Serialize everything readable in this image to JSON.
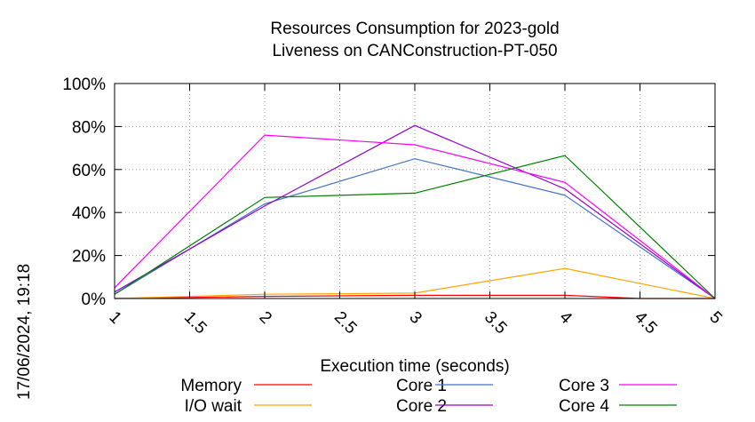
{
  "chart_data": {
    "type": "line",
    "title": [
      "Resources Consumption for 2023-gold",
      "Liveness on CANConstruction-PT-050"
    ],
    "xlabel": "Execution time (seconds)",
    "ylabel": "",
    "xlim": [
      1,
      5
    ],
    "ylim": [
      0,
      100
    ],
    "x_ticks": [
      "1",
      "1.5",
      "2",
      "2.5",
      "3",
      "3.5",
      "4",
      "4.5",
      "5"
    ],
    "y_ticks": [
      "0%",
      "20%",
      "40%",
      "60%",
      "80%",
      "100%"
    ],
    "grid": true,
    "legend_position": "bottom",
    "series": [
      {
        "name": "Memory",
        "color": "#ff0000",
        "x": [
          1,
          2,
          3,
          4,
          4.5,
          5
        ],
        "y": [
          0,
          1,
          1.5,
          1.5,
          0,
          0
        ]
      },
      {
        "name": "I/O wait",
        "color": "#ffa500",
        "x": [
          1,
          2,
          3,
          4,
          5
        ],
        "y": [
          0,
          2,
          2.5,
          14,
          0
        ]
      },
      {
        "name": "Core 1",
        "color": "#4472c4",
        "x": [
          1,
          2,
          3,
          4,
          5
        ],
        "y": [
          2,
          44,
          65,
          48,
          0
        ]
      },
      {
        "name": "Core 2",
        "color": "#9400d3",
        "x": [
          1,
          2,
          3,
          4,
          5
        ],
        "y": [
          3,
          43,
          80.5,
          51,
          0
        ]
      },
      {
        "name": "Core 3",
        "color": "#ff00ff",
        "x": [
          1,
          2,
          3,
          4,
          5
        ],
        "y": [
          5,
          76,
          71.5,
          54,
          0
        ]
      },
      {
        "name": "Core 4",
        "color": "#008000",
        "x": [
          1,
          2,
          3,
          4,
          5
        ],
        "y": [
          2,
          47,
          49,
          66.5,
          0
        ]
      }
    ]
  },
  "timestamp": "17/06/2024, 19:18"
}
